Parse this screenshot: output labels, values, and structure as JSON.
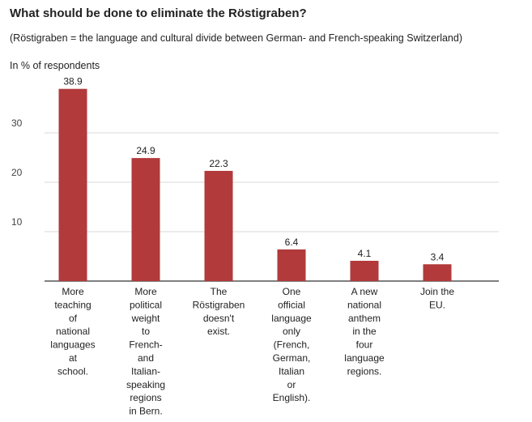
{
  "chart_data": {
    "type": "bar",
    "title": "What should be done to eliminate the Röstigraben?",
    "subtitle": "(Röstigraben = the language and cultural divide between German- and French-speaking Switzerland)",
    "ylabel": "In % of respondents",
    "xlabel": "",
    "categories": [
      [
        "More",
        "teaching",
        "of",
        "national",
        "languages",
        "at",
        "school."
      ],
      [
        "More",
        "political",
        "weight",
        "to",
        "French-",
        "and",
        "Italian-",
        "speaking",
        "regions",
        "in Bern."
      ],
      [
        "The",
        "Röstigraben",
        "doesn't",
        "exist."
      ],
      [
        "One",
        "official",
        "language",
        "only",
        "(French,",
        "German,",
        "Italian",
        "or",
        "English)."
      ],
      [
        "A new",
        "national",
        "anthem",
        "in the",
        "four",
        "language",
        "regions."
      ],
      [
        "Join the",
        "EU."
      ]
    ],
    "values": [
      38.9,
      24.9,
      22.3,
      6.4,
      4.1,
      3.4
    ],
    "value_labels": [
      "38.9",
      "24.9",
      "22.3",
      "6.4",
      "4.1",
      "3.4"
    ],
    "yticks": [
      10,
      20,
      30
    ],
    "ylim": [
      0,
      40
    ],
    "grid": true,
    "bar_color": "#b23a3a"
  }
}
